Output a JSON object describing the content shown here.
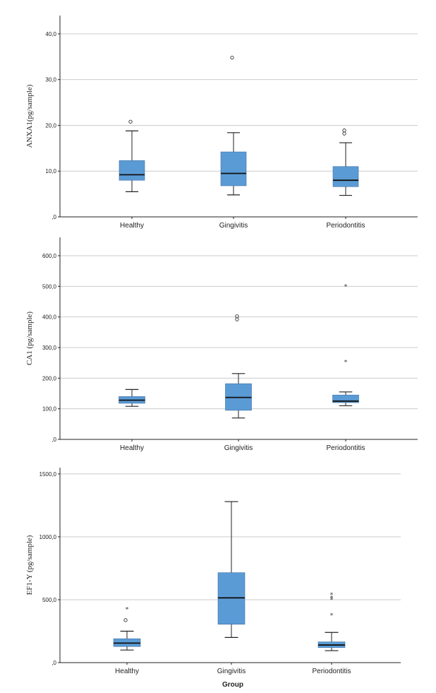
{
  "chart_data": [
    {
      "type": "box",
      "ylabel": "ANXA1(pg/sample)",
      "xlabel": "",
      "ylim": [
        0,
        44
      ],
      "yticks": [
        0,
        10,
        20,
        30,
        40
      ],
      "ytick_labels": [
        ",0",
        "10,0",
        "20,0",
        "30,0",
        "40,0"
      ],
      "grid": true,
      "categories": [
        "Healthy",
        "Gingivitis",
        "Periodontitis"
      ],
      "boxes": [
        {
          "whisker_low": 5.5,
          "q1": 8.0,
          "median": 9.2,
          "q3": 12.3,
          "whisker_high": 18.8,
          "outliers": [
            20.8
          ],
          "extremes": []
        },
        {
          "whisker_low": 4.8,
          "q1": 6.8,
          "median": 9.5,
          "q3": 14.2,
          "whisker_high": 18.4,
          "outliers": [
            34.8
          ],
          "extremes": []
        },
        {
          "whisker_low": 4.7,
          "q1": 6.6,
          "median": 8.0,
          "q3": 11.0,
          "whisker_high": 16.2,
          "outliers": [
            18.2,
            18.9
          ],
          "extremes": []
        }
      ]
    },
    {
      "type": "box",
      "ylabel": "CA1 (pg/sample)",
      "xlabel": "",
      "ylim": [
        0,
        660
      ],
      "yticks": [
        0,
        100,
        200,
        300,
        400,
        500,
        600
      ],
      "ytick_labels": [
        ",0",
        "100,0",
        "200,0",
        "300,0",
        "400,0",
        "500,0",
        "600,0"
      ],
      "grid": true,
      "categories": [
        "Healthy",
        "Gingivitis",
        "Periodontitis"
      ],
      "boxes": [
        {
          "whisker_low": 108,
          "q1": 118,
          "median": 128,
          "q3": 140,
          "whisker_high": 163,
          "outliers": [],
          "extremes": []
        },
        {
          "whisker_low": 70,
          "q1": 95,
          "median": 137,
          "q3": 182,
          "whisker_high": 215,
          "outliers": [
            392,
            402
          ],
          "extremes": []
        },
        {
          "whisker_low": 110,
          "q1": 120,
          "median": 125,
          "q3": 145,
          "whisker_high": 155,
          "outliers": [],
          "extremes": [
            253,
            500
          ]
        }
      ]
    },
    {
      "type": "box",
      "ylabel": "EF1-Y (pg/sample)",
      "xlabel": "Group",
      "ylim": [
        0,
        1550
      ],
      "yticks": [
        0,
        500,
        1000,
        1500
      ],
      "ytick_labels": [
        ",0",
        "500,0",
        "1000,0",
        "1500,0"
      ],
      "grid": true,
      "categories": [
        "Healthy",
        "Gingivitis",
        "Periodontitis"
      ],
      "boxes": [
        {
          "whisker_low": 100,
          "q1": 128,
          "median": 155,
          "q3": 190,
          "whisker_high": 250,
          "outliers": [
            338
          ],
          "extremes": [
            425
          ]
        },
        {
          "whisker_low": 200,
          "q1": 305,
          "median": 515,
          "q3": 715,
          "whisker_high": 1280,
          "outliers": [],
          "extremes": []
        },
        {
          "whisker_low": 95,
          "q1": 120,
          "median": 140,
          "q3": 165,
          "whisker_high": 240,
          "outliers": [],
          "extremes": [
            375,
            500,
            515,
            540
          ]
        }
      ]
    }
  ],
  "colors": {
    "box_fill": "#5b9bd5",
    "box_fill_top": "#4a90e2",
    "axis": "#222222",
    "grid": "#cccccc"
  }
}
